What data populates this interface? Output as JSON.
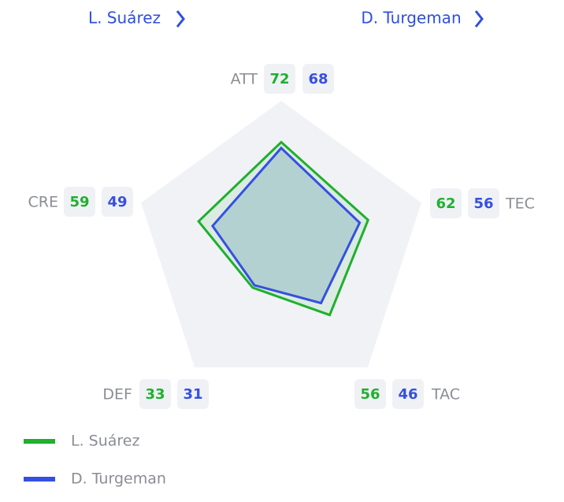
{
  "chart_data": {
    "type": "radar",
    "categories": [
      "ATT",
      "TEC",
      "TAC",
      "DEF",
      "CRE"
    ],
    "rlim": [
      0,
      100
    ],
    "series": [
      {
        "name": "L. Suárez",
        "color": "#1fb02e",
        "values": [
          72,
          62,
          56,
          33,
          59
        ]
      },
      {
        "name": "D. Turgeman",
        "color": "#3550e0",
        "values": [
          68,
          56,
          46,
          31,
          49
        ]
      }
    ]
  }
}
